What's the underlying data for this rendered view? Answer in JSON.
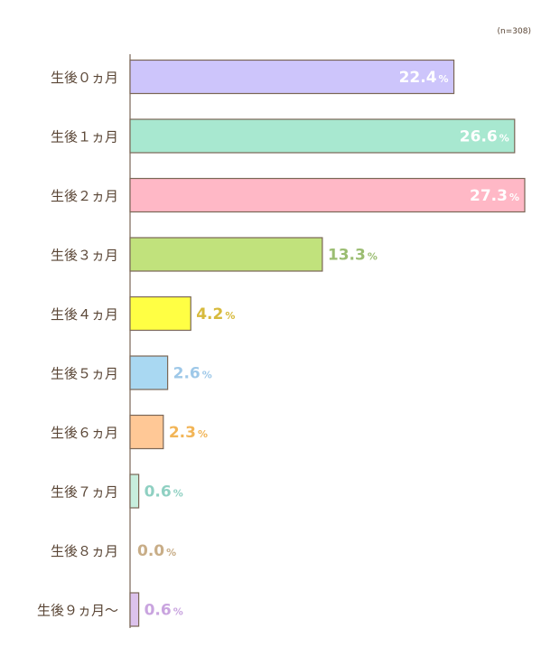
{
  "chart_data": {
    "type": "bar",
    "orientation": "horizontal",
    "note": "(n=308)",
    "unit": "%",
    "categories": [
      "生後０ヵ月",
      "生後１ヵ月",
      "生後２ヵ月",
      "生後３ヵ月",
      "生後４ヵ月",
      "生後５ヵ月",
      "生後６ヵ月",
      "生後７ヵ月",
      "生後８ヵ月",
      "生後９ヵ月〜"
    ],
    "values": [
      22.4,
      26.6,
      27.3,
      13.3,
      4.2,
      2.6,
      2.3,
      0.6,
      0.0,
      0.6
    ],
    "value_labels": [
      "22.4",
      "26.6",
      "27.3",
      "13.3",
      "4.2",
      "2.6",
      "2.3",
      "0.6",
      "0.0",
      "0.6"
    ],
    "colors": [
      "#cdc5fb",
      "#a8e8d0",
      "#ffb8c6",
      "#c1e27c",
      "#ffff44",
      "#a9d8f2",
      "#ffc896",
      "#c7eedd",
      "#d9c7a8",
      "#dcc2ec"
    ],
    "label_colors": [
      "#ffffff",
      "#ffffff",
      "#ffffff",
      "#9bbd72",
      "#d7ba3c",
      "#9ec8e8",
      "#f2b557",
      "#8fd0c2",
      "#c8ad87",
      "#c9a4df"
    ],
    "label_inside": [
      true,
      true,
      true,
      false,
      false,
      false,
      false,
      false,
      false,
      false
    ],
    "xlim": [
      0,
      27.3
    ],
    "grid": false,
    "legend": "none",
    "axis_color": "#7a6656"
  }
}
